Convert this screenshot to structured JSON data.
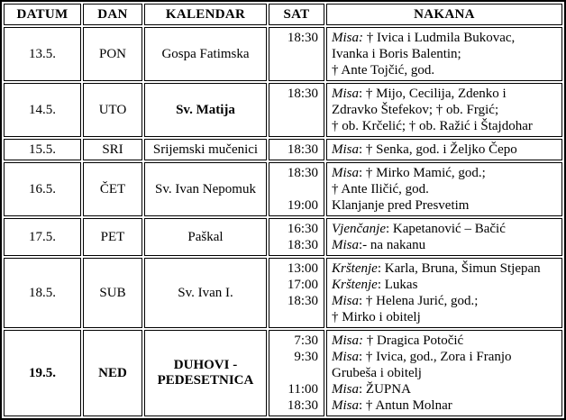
{
  "table": {
    "columns": [
      {
        "key": "datum",
        "label": "DATUM"
      },
      {
        "key": "dan",
        "label": "DAN"
      },
      {
        "key": "kalendar",
        "label": "KALENDAR"
      },
      {
        "key": "sat",
        "label": "SAT"
      },
      {
        "key": "nakana",
        "label": "NAKANA"
      }
    ],
    "rows": [
      {
        "datum": "13.5.",
        "dan": "PON",
        "kalendar": "Gospa Fatimska",
        "bold": false,
        "kalendar_bold": false,
        "lines": [
          {
            "sat": "18:30",
            "italic": "Misa:",
            "text": " † Ivica i Ludmila Bukovac,"
          },
          {
            "sat": "",
            "italic": "",
            "text": "Ivanka i Boris Balentin;"
          },
          {
            "sat": "",
            "italic": "",
            "text": "† Ante Tojčić, god."
          }
        ]
      },
      {
        "datum": "14.5.",
        "dan": "UTO",
        "kalendar": "Sv. Matija",
        "bold": false,
        "kalendar_bold": true,
        "lines": [
          {
            "sat": "18:30",
            "italic": "Misa",
            "text": ": † Mijo, Cecilija, Zdenko i"
          },
          {
            "sat": "",
            "italic": "",
            "text": "Zdravko Štefekov; † ob. Frgić;"
          },
          {
            "sat": "",
            "italic": "",
            "text": "† ob. Krčelić; † ob. Ražić i Štajdohar"
          }
        ]
      },
      {
        "datum": "15.5.",
        "dan": "SRI",
        "kalendar": "Srijemski mučenici",
        "bold": false,
        "kalendar_bold": false,
        "lines": [
          {
            "sat": "18:30",
            "italic": "Misa",
            "text": ": † Senka, god. i Željko Čepo"
          }
        ]
      },
      {
        "datum": "16.5.",
        "dan": "ČET",
        "kalendar": "Sv. Ivan Nepomuk",
        "bold": false,
        "kalendar_bold": false,
        "lines": [
          {
            "sat": "18:30",
            "italic": "Misa",
            "text": ": † Mirko Mamić, god.;"
          },
          {
            "sat": "",
            "italic": "",
            "text": "† Ante Iličić, god."
          },
          {
            "sat": "19:00",
            "italic": "",
            "text": "Klanjanje pred Presvetim"
          }
        ]
      },
      {
        "datum": "17.5.",
        "dan": "PET",
        "kalendar": "Paškal",
        "bold": false,
        "kalendar_bold": false,
        "lines": [
          {
            "sat": "16:30",
            "italic": "Vjenčanje",
            "text": ": Kapetanović – Bačić"
          },
          {
            "sat": "18:30",
            "italic": "Misa",
            "text": ":- na nakanu"
          }
        ]
      },
      {
        "datum": "18.5.",
        "dan": "SUB",
        "kalendar": "Sv. Ivan I.",
        "bold": false,
        "kalendar_bold": false,
        "lines": [
          {
            "sat": "13:00",
            "italic": "Krštenje",
            "text": ": Karla, Bruna, Šimun Stjepan"
          },
          {
            "sat": "17:00",
            "italic": "Krštenje",
            "text": ": Lukas"
          },
          {
            "sat": "18:30",
            "italic": "Misa",
            "text": ": † Helena Jurić, god.;"
          },
          {
            "sat": "",
            "italic": "",
            "text": "† Mirko i obitelj"
          }
        ]
      },
      {
        "datum": "19.5.",
        "dan": "NED",
        "kalendar": "DUHOVI - PEDESETNICA",
        "bold": true,
        "kalendar_bold": true,
        "lines": [
          {
            "sat": "7:30",
            "italic": "Misa:",
            "text": " † Dragica Potočić"
          },
          {
            "sat": "9:30",
            "italic": "Misa",
            "text": ": † Ivica, god., Zora i Franjo"
          },
          {
            "sat": "",
            "italic": "",
            "text": "Grubeša i obitelj"
          },
          {
            "sat": "11:00",
            "italic": "Misa",
            "text": ": ŽUPNA"
          },
          {
            "sat": "18:30",
            "italic": "Misa",
            "text": ": † Antun Molnar"
          }
        ]
      }
    ]
  }
}
